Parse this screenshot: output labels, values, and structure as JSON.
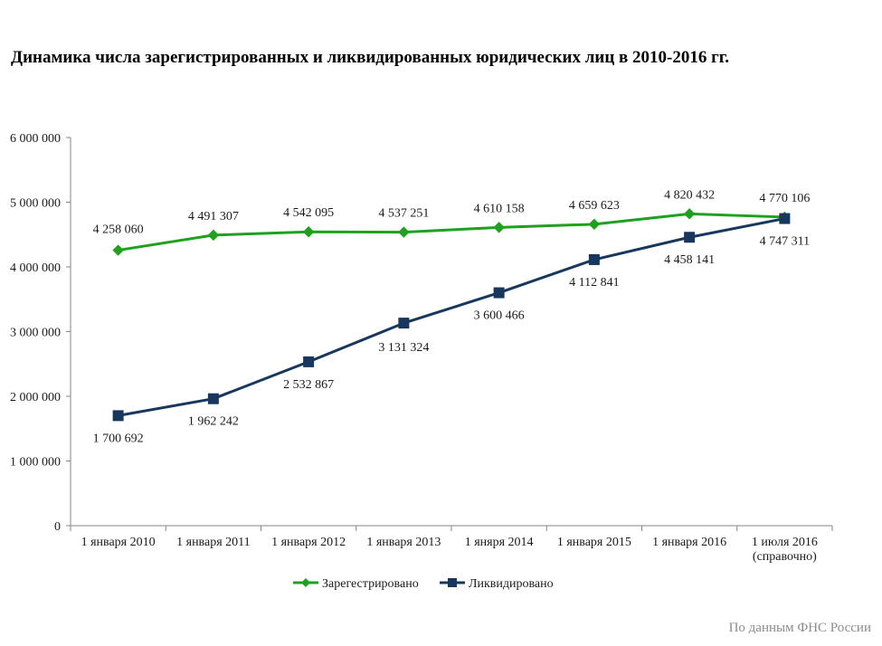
{
  "chart_data": {
    "type": "line",
    "title": "Динамика числа зарегистрированных  и ликвидированных юридических лиц в 2010-2016 гг.",
    "xlabel": "",
    "ylabel": "",
    "ylim": [
      0,
      6000000
    ],
    "yticks": [
      0,
      1000000,
      2000000,
      3000000,
      4000000,
      5000000,
      6000000
    ],
    "ytick_labels": [
      "0",
      "1 000 000",
      "2 000 000",
      "3 000 000",
      "4 000 000",
      "5 000 000",
      "6 000 000"
    ],
    "grid": false,
    "legend_position": "bottom-center",
    "categories": [
      [
        "1  января 2010"
      ],
      [
        "1 января 2011"
      ],
      [
        "1 января 2012"
      ],
      [
        "1 января 2013"
      ],
      [
        "1 яняря 2014"
      ],
      [
        "1  января 2015"
      ],
      [
        "1 января 2016"
      ],
      [
        "1 июля 2016",
        "(справочно)"
      ]
    ],
    "series": [
      {
        "name": "Зарегестрировано",
        "color": "#1fa01f",
        "marker": "diamond",
        "values": [
          4258060,
          4491307,
          4542095,
          4537251,
          4610158,
          4659623,
          4820432,
          4770106
        ],
        "labels": [
          "4 258 060",
          "4 491 307",
          "4 542 095",
          "4 537 251",
          "4 610 158",
          "4 659 623",
          "4 820 432",
          "4 770 106"
        ]
      },
      {
        "name": "Ликвидировано",
        "color": "#17375e",
        "marker": "square",
        "values": [
          1700692,
          1962242,
          2532867,
          3131324,
          3600466,
          4112841,
          4458141,
          4747311
        ],
        "labels": [
          "1 700 692",
          "1 962 242",
          "2 532 867",
          "3 131 324",
          "3 600 466",
          "4 112 841",
          "4 458 141",
          "4 747 311"
        ]
      }
    ],
    "axis_color": "#868686"
  },
  "source_note": "По данным ФНС России"
}
